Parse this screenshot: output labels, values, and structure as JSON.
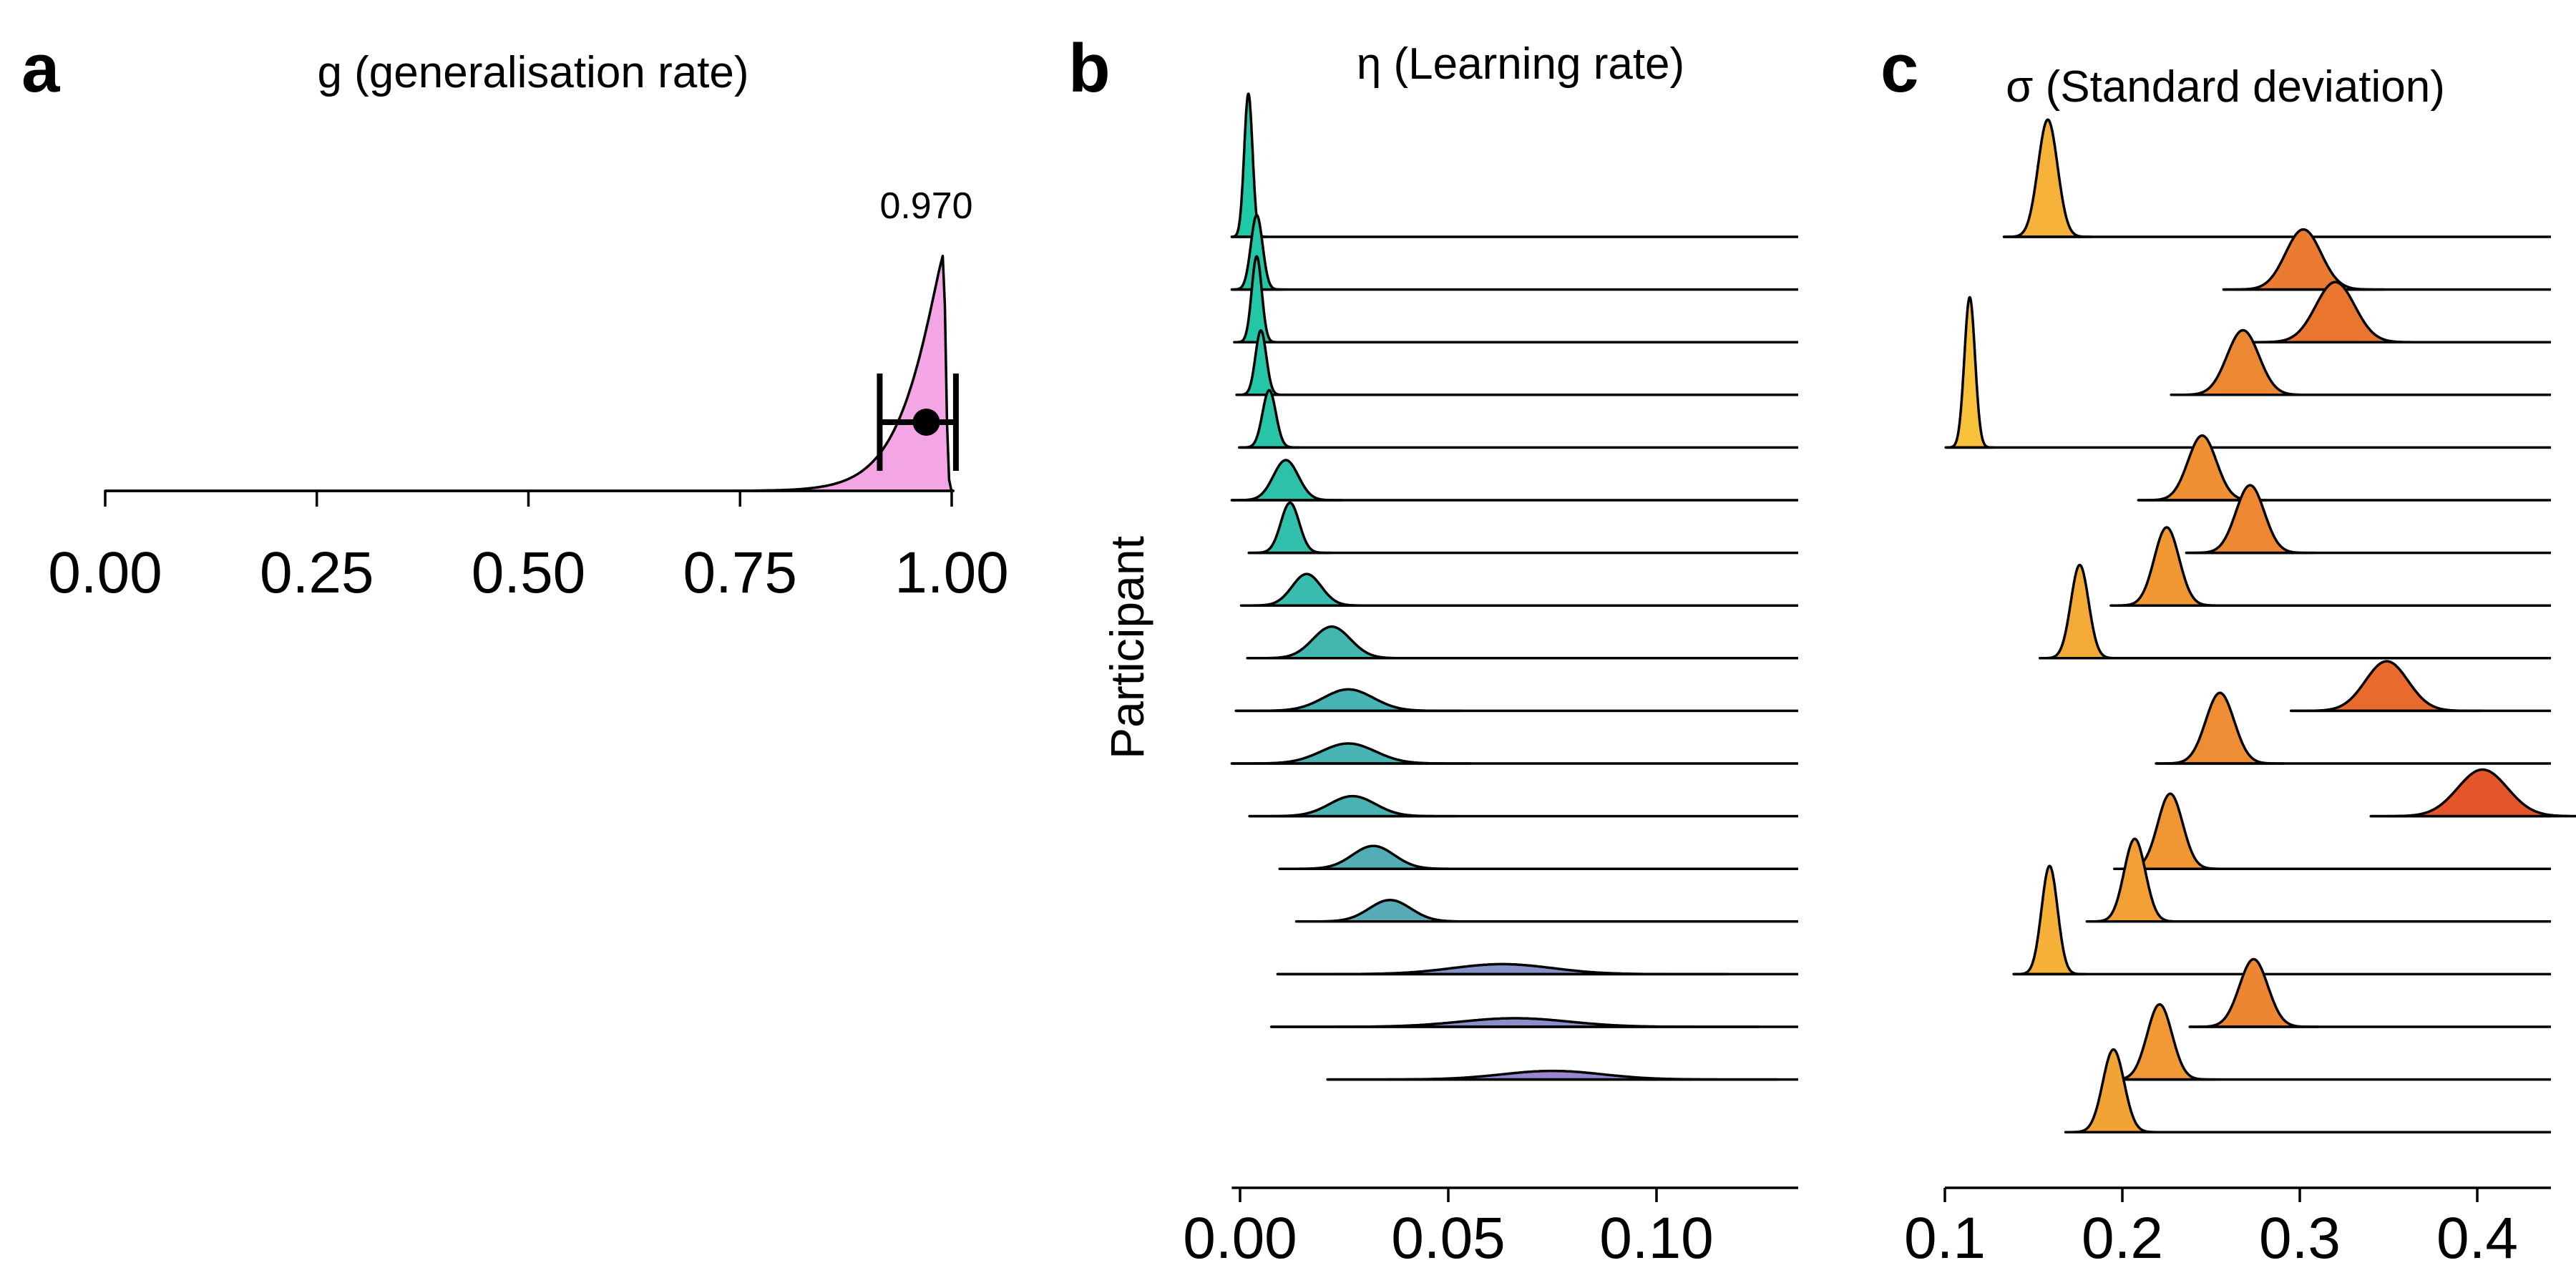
{
  "chart_data": [
    {
      "panel": "a",
      "type": "area",
      "title": "g (generalisation rate)",
      "xlim": [
        0,
        1.02
      ],
      "xticks": [
        "0.00",
        "0.25",
        "0.50",
        "0.75",
        "1.00"
      ],
      "xtick_values": [
        0,
        0.25,
        0.5,
        0.75,
        1.0
      ],
      "fill_color": "#F4A6E4",
      "mode": 0.99,
      "mean": 0.97,
      "mean_label": "0.970",
      "interval": [
        0.915,
        1.005
      ],
      "grid": false
    },
    {
      "panel": "b",
      "type": "area",
      "title": "η (Learning rate)",
      "ylabel": "Participant",
      "xlim": [
        -0.002,
        0.135
      ],
      "xticks": [
        "0.00",
        "0.05",
        "0.10"
      ],
      "xtick_values": [
        0,
        0.05,
        0.1
      ],
      "color_low": "#1FC9A5",
      "color_high": "#9A86CE",
      "series": [
        {
          "mode": 0.002,
          "sd": 0.001,
          "height": 1.0
        },
        {
          "mode": 0.004,
          "sd": 0.0014,
          "height": 0.52
        },
        {
          "mode": 0.004,
          "sd": 0.0012,
          "height": 0.6
        },
        {
          "mode": 0.005,
          "sd": 0.0013,
          "height": 0.45
        },
        {
          "mode": 0.007,
          "sd": 0.0016,
          "height": 0.4
        },
        {
          "mode": 0.011,
          "sd": 0.003,
          "height": 0.28
        },
        {
          "mode": 0.012,
          "sd": 0.0022,
          "height": 0.35
        },
        {
          "mode": 0.016,
          "sd": 0.0035,
          "height": 0.22
        },
        {
          "mode": 0.022,
          "sd": 0.0045,
          "height": 0.22
        },
        {
          "mode": 0.026,
          "sd": 0.006,
          "height": 0.15
        },
        {
          "mode": 0.026,
          "sd": 0.0065,
          "height": 0.14
        },
        {
          "mode": 0.027,
          "sd": 0.0055,
          "height": 0.14
        },
        {
          "mode": 0.032,
          "sd": 0.005,
          "height": 0.16
        },
        {
          "mode": 0.036,
          "sd": 0.005,
          "height": 0.15
        },
        {
          "mode": 0.063,
          "sd": 0.012,
          "height": 0.07
        },
        {
          "mode": 0.066,
          "sd": 0.013,
          "height": 0.06
        },
        {
          "mode": 0.075,
          "sd": 0.012,
          "height": 0.06
        }
      ],
      "grid": false
    },
    {
      "panel": "c",
      "type": "area",
      "title": "σ (Standard deviation)",
      "xlim": [
        0.1,
        0.455
      ],
      "xticks": [
        "0.1",
        "0.2",
        "0.3",
        "0.4"
      ],
      "xtick_values": [
        0.1,
        0.2,
        0.3,
        0.4
      ],
      "color_low": "#F8C13B",
      "color_high": "#E4562A",
      "series": [
        {
          "mode": 0.158,
          "sd": 0.0055,
          "height": 0.78
        },
        {
          "mode": 0.302,
          "sd": 0.01,
          "height": 0.4
        },
        {
          "mode": 0.32,
          "sd": 0.011,
          "height": 0.4
        },
        {
          "mode": 0.268,
          "sd": 0.009,
          "height": 0.43
        },
        {
          "mode": 0.114,
          "sd": 0.003,
          "height": 1.0
        },
        {
          "mode": 0.245,
          "sd": 0.008,
          "height": 0.43
        },
        {
          "mode": 0.272,
          "sd": 0.008,
          "height": 0.45
        },
        {
          "mode": 0.225,
          "sd": 0.007,
          "height": 0.52
        },
        {
          "mode": 0.176,
          "sd": 0.005,
          "height": 0.62
        },
        {
          "mode": 0.349,
          "sd": 0.012,
          "height": 0.33
        },
        {
          "mode": 0.255,
          "sd": 0.008,
          "height": 0.47
        },
        {
          "mode": 0.403,
          "sd": 0.014,
          "height": 0.31
        },
        {
          "mode": 0.227,
          "sd": 0.007,
          "height": 0.5
        },
        {
          "mode": 0.207,
          "sd": 0.006,
          "height": 0.55
        },
        {
          "mode": 0.159,
          "sd": 0.0045,
          "height": 0.72
        },
        {
          "mode": 0.274,
          "sd": 0.008,
          "height": 0.45
        },
        {
          "mode": 0.221,
          "sd": 0.007,
          "height": 0.5
        },
        {
          "mode": 0.195,
          "sd": 0.006,
          "height": 0.55
        }
      ],
      "grid": false
    }
  ]
}
